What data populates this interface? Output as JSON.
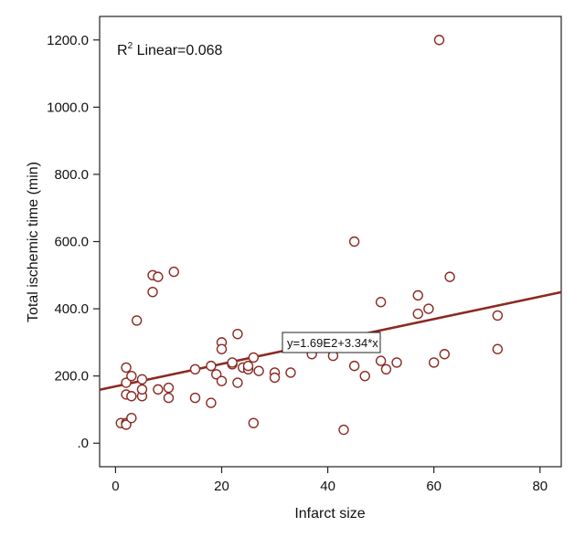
{
  "chart_data": {
    "type": "scatter",
    "xlabel": "Infarct size",
    "ylabel": "Total ischemic time (min)",
    "xlim": [
      -3,
      84
    ],
    "ylim": [
      -70,
      1270
    ],
    "xticks": [
      0,
      20,
      40,
      60,
      80
    ],
    "xtick_labels": [
      "0",
      "20",
      "40",
      "60",
      "80"
    ],
    "yticks": [
      0,
      200,
      400,
      600,
      800,
      1000,
      1200
    ],
    "ytick_labels": [
      ".0",
      "200.0",
      "400.0",
      "600.0",
      "800.0",
      "1000.0",
      "1200.0"
    ],
    "grid": false,
    "marker_color": "#8b2a22",
    "line_color": "#8b2a22",
    "r2_label": "R",
    "r2_sup": "2",
    "r2_rest": " Linear=0.068",
    "fit_equation": "y=1.69E2+3.34*x",
    "fit": {
      "intercept": 169,
      "slope": 3.34
    },
    "points": [
      [
        1,
        60
      ],
      [
        2,
        60
      ],
      [
        2,
        55
      ],
      [
        2,
        145
      ],
      [
        2,
        180
      ],
      [
        2,
        225
      ],
      [
        3,
        75
      ],
      [
        3,
        200
      ],
      [
        3,
        140
      ],
      [
        4,
        365
      ],
      [
        5,
        140
      ],
      [
        5,
        160
      ],
      [
        5,
        190
      ],
      [
        7,
        500
      ],
      [
        7,
        450
      ],
      [
        8,
        495
      ],
      [
        8,
        160
      ],
      [
        10,
        165
      ],
      [
        10,
        135
      ],
      [
        11,
        510
      ],
      [
        15,
        220
      ],
      [
        15,
        135
      ],
      [
        18,
        230
      ],
      [
        18,
        120
      ],
      [
        19,
        205
      ],
      [
        20,
        300
      ],
      [
        20,
        280
      ],
      [
        20,
        185
      ],
      [
        22,
        235
      ],
      [
        22,
        240
      ],
      [
        23,
        325
      ],
      [
        23,
        180
      ],
      [
        24,
        225
      ],
      [
        25,
        220
      ],
      [
        25,
        230
      ],
      [
        26,
        255
      ],
      [
        26,
        60
      ],
      [
        27,
        215
      ],
      [
        30,
        210
      ],
      [
        30,
        195
      ],
      [
        33,
        210
      ],
      [
        37,
        265
      ],
      [
        41,
        260
      ],
      [
        43,
        40
      ],
      [
        45,
        600
      ],
      [
        45,
        230
      ],
      [
        47,
        200
      ],
      [
        50,
        420
      ],
      [
        50,
        245
      ],
      [
        51,
        220
      ],
      [
        53,
        240
      ],
      [
        57,
        440
      ],
      [
        57,
        385
      ],
      [
        59,
        400
      ],
      [
        60,
        240
      ],
      [
        61,
        1200
      ],
      [
        62,
        265
      ],
      [
        63,
        495
      ],
      [
        72,
        380
      ],
      [
        72,
        280
      ]
    ]
  }
}
